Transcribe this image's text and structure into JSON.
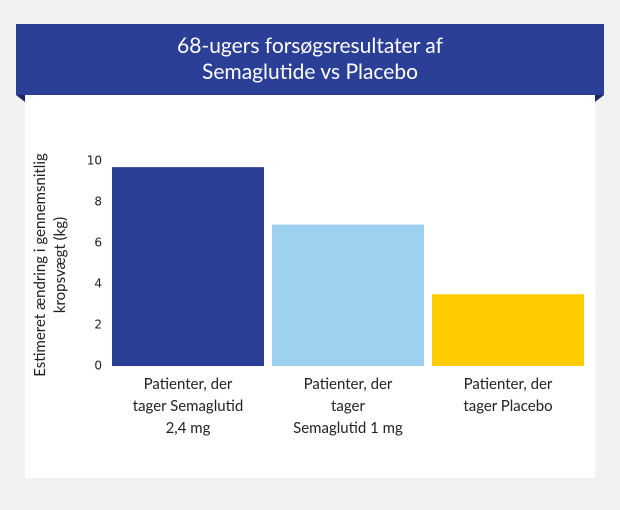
{
  "chart_data": {
    "type": "bar",
    "title": "68-ugers forsøgsresultater af\nSemaglutide vs Placebo",
    "y_label": "Estimeret ændring i gennemsnitlig\nkropsvægt (kg)",
    "categories": [
      "Patienter, der\ntager Semaglutid\n2,4 mg",
      "Patienter, der\ntager\nSemaglutid 1 mg",
      "Patienter, der\ntager Placebo"
    ],
    "values": [
      9.7,
      6.9,
      3.5
    ],
    "colors": [
      "#293f95",
      "#9ed0ef",
      "#ffcc00"
    ],
    "ylim": [
      0,
      10
    ],
    "yticks": [
      0,
      2,
      4,
      6,
      8,
      10
    ],
    "grid": false
  }
}
